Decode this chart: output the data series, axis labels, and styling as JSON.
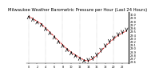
{
  "title": "Milwaukee Weather Barometric Pressure per Hour (Last 24 Hours)",
  "hours": [
    0,
    1,
    2,
    3,
    4,
    5,
    6,
    7,
    8,
    9,
    10,
    11,
    12,
    13,
    14,
    15,
    16,
    17,
    18,
    19,
    20,
    21,
    22,
    23
  ],
  "pressure": [
    29.95,
    29.88,
    29.8,
    29.72,
    29.6,
    29.48,
    29.35,
    29.22,
    29.1,
    28.98,
    28.88,
    28.8,
    28.72,
    28.65,
    28.62,
    28.68,
    28.78,
    28.92,
    29.05,
    29.18,
    29.28,
    29.38,
    29.45,
    29.52
  ],
  "line_color": "#cc0000",
  "marker_color": "#000000",
  "bg_color": "#ffffff",
  "grid_color": "#888888",
  "title_color": "#000000",
  "ylim": [
    28.55,
    30.08
  ],
  "ytick_vals": [
    28.6,
    28.7,
    28.8,
    28.9,
    29.0,
    29.1,
    29.2,
    29.3,
    29.4,
    29.5,
    29.6,
    29.7,
    29.8,
    29.9,
    30.0
  ],
  "title_fontsize": 3.8,
  "tick_fontsize": 2.5
}
